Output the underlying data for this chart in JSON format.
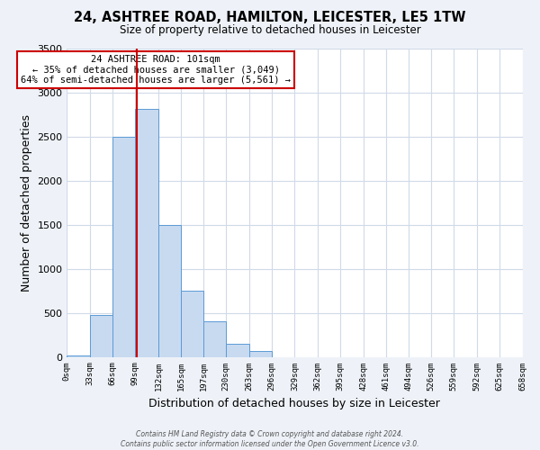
{
  "title": "24, ASHTREE ROAD, HAMILTON, LEICESTER, LE5 1TW",
  "subtitle": "Size of property relative to detached houses in Leicester",
  "xlabel": "Distribution of detached houses by size in Leicester",
  "ylabel": "Number of detached properties",
  "bin_edges": [
    0,
    33,
    66,
    99,
    132,
    165,
    197,
    230,
    263,
    296,
    329,
    362,
    395,
    428,
    461,
    494,
    526,
    559,
    592,
    625,
    658
  ],
  "bin_labels": [
    "0sqm",
    "33sqm",
    "66sqm",
    "99sqm",
    "132sqm",
    "165sqm",
    "197sqm",
    "230sqm",
    "263sqm",
    "296sqm",
    "329sqm",
    "362sqm",
    "395sqm",
    "428sqm",
    "461sqm",
    "494sqm",
    "526sqm",
    "559sqm",
    "592sqm",
    "625sqm",
    "658sqm"
  ],
  "bar_heights": [
    20,
    480,
    2500,
    2820,
    1500,
    750,
    400,
    150,
    70,
    0,
    0,
    0,
    0,
    0,
    0,
    0,
    0,
    0,
    0,
    0
  ],
  "bar_color": "#c8daf0",
  "bar_edgecolor": "#5b9bd5",
  "property_line_x": 101,
  "property_line_color": "#cc0000",
  "annotation_title": "24 ASHTREE ROAD: 101sqm",
  "annotation_line1": "← 35% of detached houses are smaller (3,049)",
  "annotation_line2": "64% of semi-detached houses are larger (5,561) →",
  "annotation_box_edgecolor": "#cc0000",
  "ylim": [
    0,
    3500
  ],
  "yticks": [
    0,
    500,
    1000,
    1500,
    2000,
    2500,
    3000,
    3500
  ],
  "footer_line1": "Contains HM Land Registry data © Crown copyright and database right 2024.",
  "footer_line2": "Contains public sector information licensed under the Open Government Licence v3.0.",
  "background_color": "#eef2f8",
  "plot_background": "#ffffff",
  "grid_color": "#d0dae8"
}
